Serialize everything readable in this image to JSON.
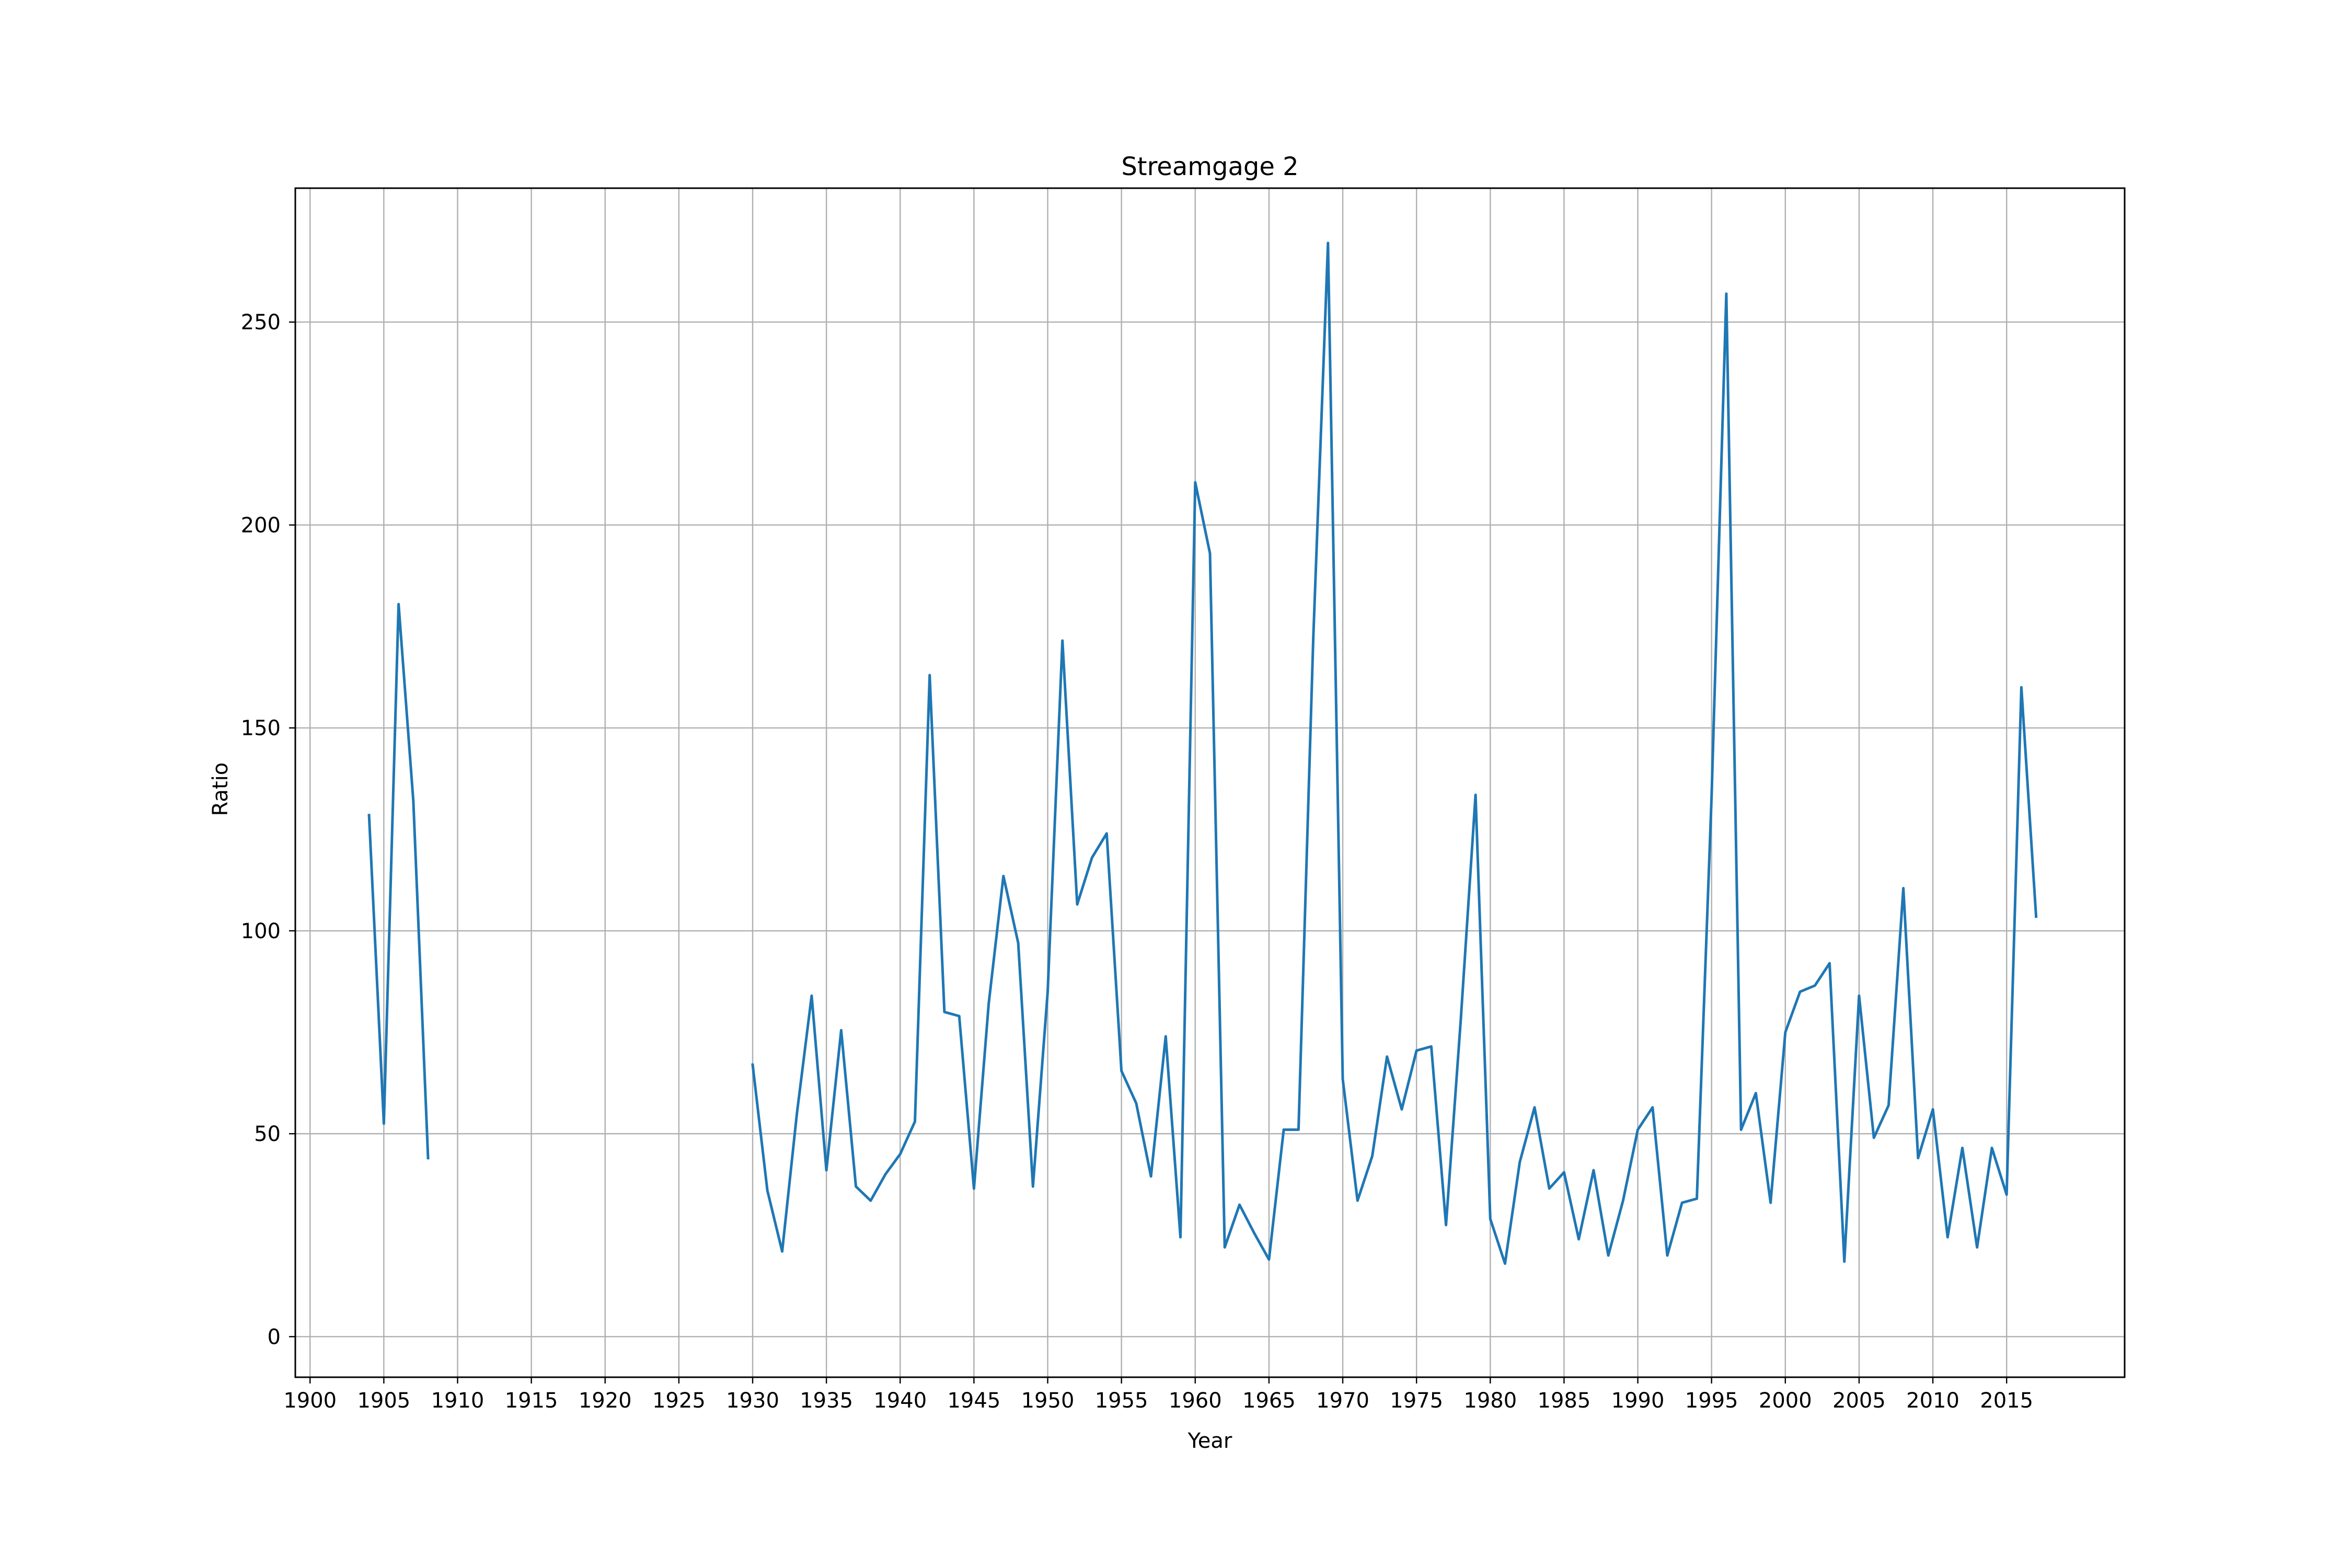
{
  "chart_data": {
    "type": "line",
    "title": "Streamgage 2",
    "xlabel": "Year",
    "ylabel": "Ratio",
    "xlim": [
      1899,
      2023
    ],
    "ylim": [
      -10,
      283
    ],
    "grid": true,
    "line_color": "#1f77b4",
    "xticks": [
      1900,
      1905,
      1910,
      1915,
      1920,
      1925,
      1930,
      1935,
      1940,
      1945,
      1950,
      1955,
      1960,
      1965,
      1970,
      1975,
      1980,
      1985,
      1990,
      1995,
      2000,
      2005,
      2010,
      2015
    ],
    "yticks": [
      0,
      50,
      100,
      150,
      200,
      250
    ],
    "series": [
      {
        "segments": [
          {
            "x": [
              1904,
              1905,
              1906,
              1907,
              1908
            ],
            "y": [
              128.5,
              52.5,
              180.5,
              132,
              44
            ]
          },
          {
            "x": [
              1930,
              1931,
              1932,
              1933,
              1934,
              1935,
              1936,
              1937,
              1938,
              1939,
              1940,
              1941,
              1942,
              1943,
              1944,
              1945,
              1946,
              1947,
              1948,
              1949,
              1950,
              1951,
              1952,
              1953,
              1954,
              1955,
              1956,
              1957,
              1958,
              1959,
              1960,
              1961,
              1962,
              1963,
              1964,
              1965,
              1966,
              1967,
              1968,
              1969,
              1970,
              1971,
              1972,
              1973,
              1974,
              1975,
              1976,
              1977,
              1978,
              1979,
              1980,
              1981,
              1982,
              1983,
              1984,
              1985,
              1986,
              1987,
              1988,
              1989,
              1990,
              1991,
              1992,
              1993,
              1994,
              1995,
              1996,
              1997,
              1998,
              1999,
              2000,
              2001,
              2002,
              2003,
              2004,
              2005,
              2006,
              2007,
              2008,
              2009,
              2010,
              2011,
              2012,
              2013,
              2014,
              2015,
              2016,
              2017
            ],
            "y": [
              67,
              36,
              21,
              55,
              84,
              41,
              75.5,
              37,
              33.5,
              40,
              45,
              53,
              163,
              80,
              79,
              36.5,
              82,
              113.5,
              97,
              37,
              85,
              171.5,
              106.5,
              118,
              124,
              65.5,
              57.5,
              39.5,
              74,
              24.5,
              210.5,
              193,
              22,
              32.5,
              25.5,
              19,
              51,
              51,
              172,
              269.5,
              63.5,
              33.5,
              44.5,
              69,
              56,
              70.5,
              71.5,
              27.5,
              78,
              133.5,
              29,
              18,
              43,
              56.5,
              36.5,
              40.5,
              24,
              41,
              20,
              33.5,
              51,
              56.5,
              20,
              33,
              34,
              133,
              257,
              51,
              60,
              33,
              75,
              85,
              86.5,
              92,
              18.5,
              84,
              49,
              57,
              110.5,
              44,
              56,
              24.5,
              46.5,
              22,
              46.5,
              35,
              160,
              103.5
            ]
          }
        ]
      }
    ]
  }
}
